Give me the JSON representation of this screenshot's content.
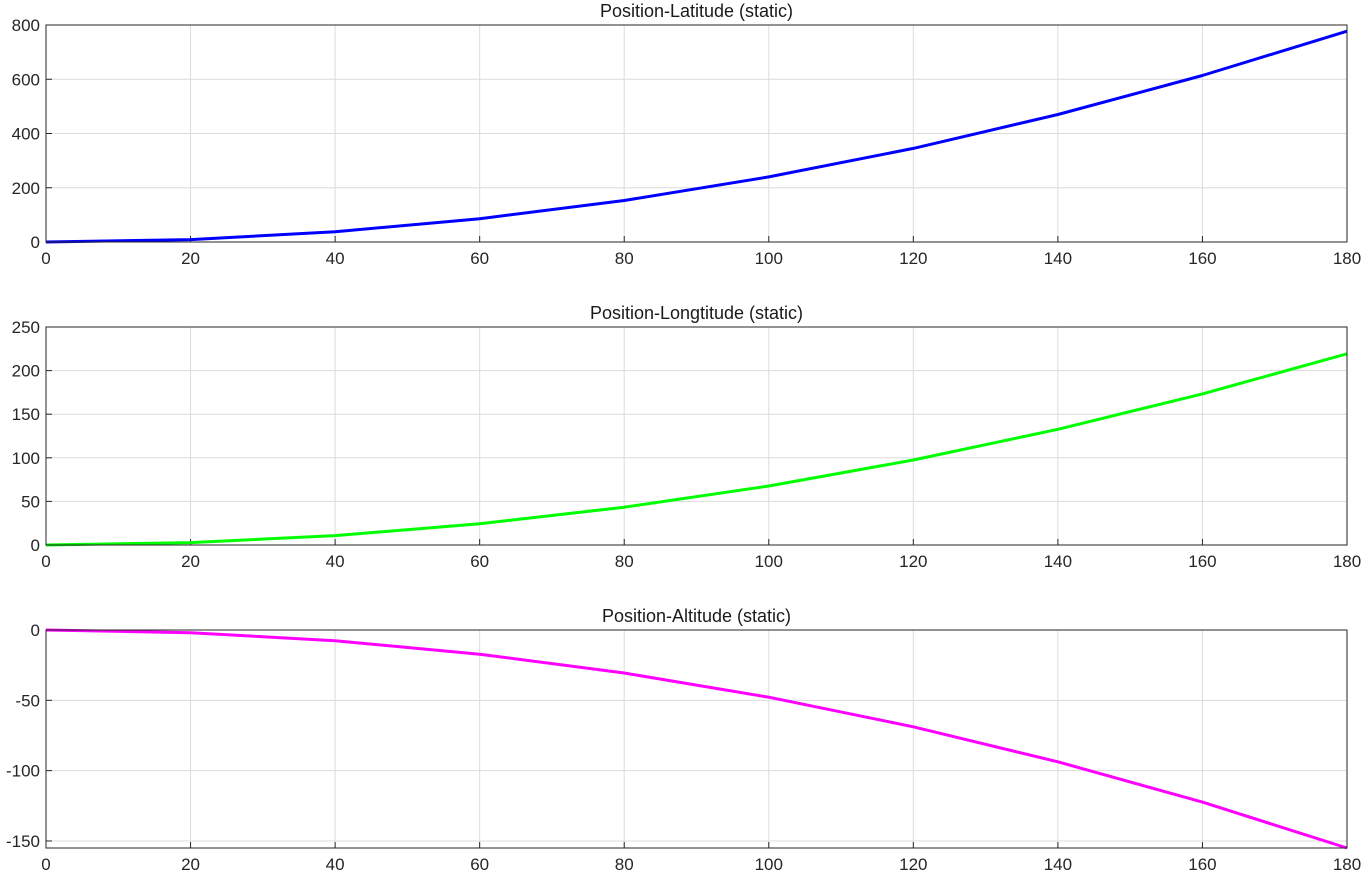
{
  "chart_data": [
    {
      "type": "line",
      "title": "Position-Latitude (static)",
      "xlabel": "",
      "ylabel": "",
      "xlim": [
        0,
        180
      ],
      "ylim": [
        0,
        800
      ],
      "xticks": [
        "0",
        "20",
        "40",
        "60",
        "80",
        "100",
        "120",
        "140",
        "160",
        "180"
      ],
      "yticks": [
        "0",
        "200",
        "400",
        "600",
        "800"
      ],
      "grid": true,
      "series": [
        {
          "color": "#0000ff",
          "x": [
            0,
            20,
            40,
            60,
            80,
            100,
            120,
            140,
            160,
            180
          ],
          "y": [
            0,
            9,
            38,
            86,
            153,
            240,
            345,
            470,
            614,
            777
          ]
        }
      ]
    },
    {
      "type": "line",
      "title": "Position-Longtitude (static)",
      "xlabel": "",
      "ylabel": "",
      "xlim": [
        0,
        180
      ],
      "ylim": [
        0,
        250
      ],
      "xticks": [
        "0",
        "20",
        "40",
        "60",
        "80",
        "100",
        "120",
        "140",
        "160",
        "180"
      ],
      "yticks": [
        "0",
        "50",
        "100",
        "150",
        "200",
        "250"
      ],
      "grid": true,
      "series": [
        {
          "color": "#00ff00",
          "x": [
            0,
            20,
            40,
            60,
            80,
            100,
            120,
            140,
            160,
            180
          ],
          "y": [
            0,
            2.7,
            10.8,
            24.4,
            43.3,
            67.7,
            97.5,
            132.7,
            173.3,
            219.3
          ]
        }
      ]
    },
    {
      "type": "line",
      "title": "Position-Altitude (static)",
      "xlabel": "",
      "ylabel": "",
      "xlim": [
        0,
        180
      ],
      "ylim": [
        -155,
        0
      ],
      "xticks": [
        "0",
        "20",
        "40",
        "60",
        "80",
        "100",
        "120",
        "140",
        "160",
        "180"
      ],
      "yticks": [
        "0",
        "-50",
        "-100",
        "-150"
      ],
      "grid": true,
      "series": [
        {
          "color": "#ff00ff",
          "x": [
            0,
            20,
            40,
            60,
            80,
            100,
            120,
            140,
            160,
            180
          ],
          "y": [
            0,
            -1.9,
            -7.7,
            -17.2,
            -30.6,
            -47.8,
            -68.8,
            -93.7,
            -122.4,
            -155
          ]
        }
      ]
    }
  ]
}
